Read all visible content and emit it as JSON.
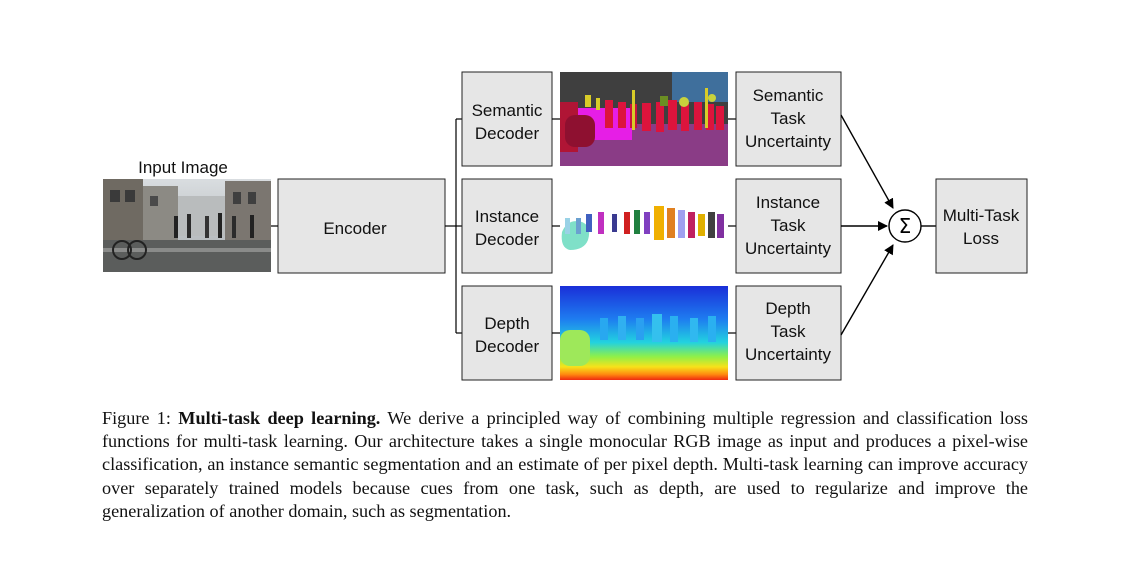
{
  "figure": {
    "input_label": "Input Image",
    "encoder_label": "Encoder",
    "decoders": [
      {
        "line1": "Semantic",
        "line2": "Decoder"
      },
      {
        "line1": "Instance",
        "line2": "Decoder"
      },
      {
        "line1": "Depth",
        "line2": "Decoder"
      }
    ],
    "uncertainties": [
      {
        "line1": "Semantic",
        "line2": "Task",
        "line3": "Uncertainty"
      },
      {
        "line1": "Instance",
        "line2": "Task",
        "line3": "Uncertainty"
      },
      {
        "line1": "Depth",
        "line2": "Task",
        "line3": "Uncertainty"
      }
    ],
    "sum_symbol": "Σ",
    "loss": {
      "line1": "Multi-Task",
      "line2": "Loss"
    }
  },
  "caption": {
    "label": "Figure 1:",
    "title": "Multi-task deep learning.",
    "body": "We derive a principled way of combining multiple regression and classification loss functions for multi-task learning. Our architecture takes a single monocular RGB image as input and produces a pixel-wise classification, an instance semantic segmentation and an estimate of per pixel depth. Multi-task learning can improve accuracy over separately trained models because cues from one task, such as depth, are used to regularize and improve the generalization of another domain, such as segmentation."
  }
}
